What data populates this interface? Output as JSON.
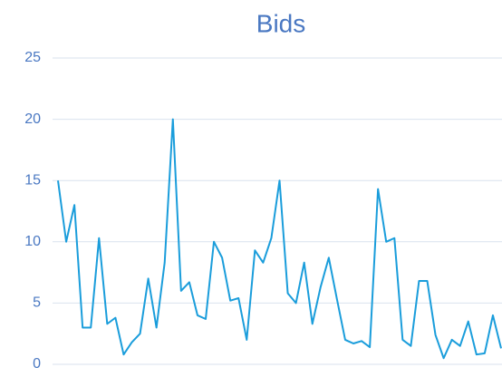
{
  "chart_data": {
    "type": "line",
    "title": "Bids",
    "categories": [
      null,
      null,
      null,
      null,
      null,
      null,
      null,
      null,
      null,
      null,
      null,
      null,
      null,
      null,
      null,
      null,
      null,
      null,
      null,
      null,
      null,
      null,
      null,
      null,
      null,
      null,
      null,
      null,
      null,
      null,
      null,
      null,
      null,
      null,
      null,
      null,
      null,
      null,
      null,
      null,
      null,
      null,
      null,
      null,
      null,
      null,
      null,
      null,
      null,
      null,
      null,
      null,
      null,
      null,
      null
    ],
    "series": [
      {
        "name": "Bids",
        "color": "#1a9ddb",
        "values": [
          15,
          10,
          13,
          3,
          3,
          10.3,
          3.3,
          3.8,
          0.8,
          1.8,
          2.5,
          7,
          3,
          8.3,
          20,
          6,
          6.7,
          4,
          3.7,
          10,
          8.7,
          5.2,
          5.4,
          2,
          9.3,
          8.3,
          10.3,
          15,
          5.8,
          5,
          8.3,
          3.3,
          6.3,
          8.7,
          5.3,
          2,
          1.7,
          1.9,
          1.4,
          14.3,
          10,
          10.3,
          2,
          1.5,
          6.8,
          6.8,
          2.4,
          0.5,
          2,
          1.5,
          3.5,
          0.8,
          0.9,
          4,
          1.3
        ]
      }
    ],
    "ylim": [
      0,
      25
    ],
    "yticks": [
      0,
      5,
      10,
      15,
      20,
      25
    ],
    "grid": true
  }
}
